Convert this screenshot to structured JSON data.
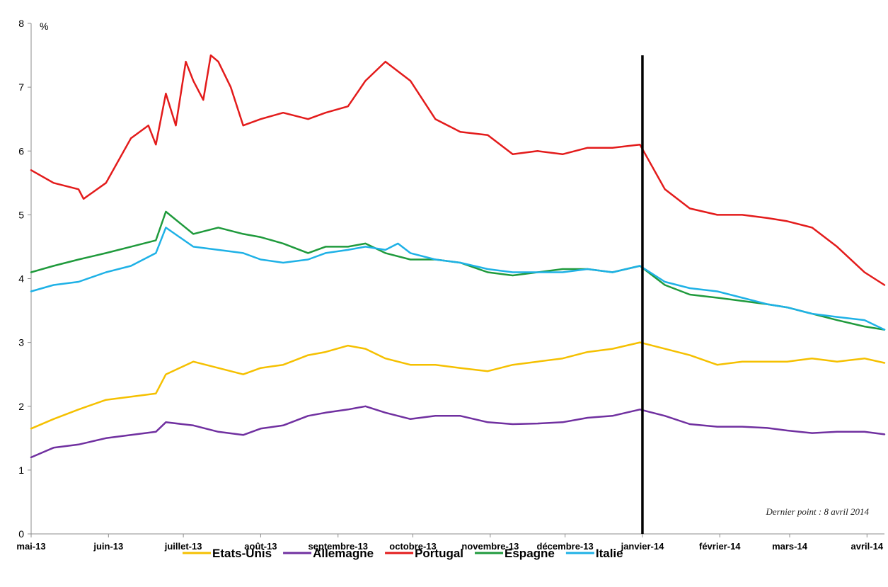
{
  "chart_data": {
    "type": "line",
    "y_unit_label": "%",
    "ylim": [
      0,
      8
    ],
    "y_ticks": [
      "0",
      "1",
      "2",
      "3",
      "4",
      "5",
      "6",
      "7",
      "8"
    ],
    "x_tick_labels": [
      "mai-13",
      "juin-13",
      "juillet-13",
      "août-13",
      "septembre-13",
      "octobre-13",
      "novembre-13",
      "décembre-13",
      "janvier-14",
      "février-14",
      "mars-14",
      "avril-14"
    ],
    "x_tick_dates": [
      "2013-05-01",
      "2013-06-01",
      "2013-07-01",
      "2013-08-01",
      "2013-09-01",
      "2013-10-01",
      "2013-11-01",
      "2013-12-01",
      "2014-01-01",
      "2014-02-01",
      "2014-03-01",
      "2014-04-01"
    ],
    "xlim": [
      "2013-05-01",
      "2014-04-08"
    ],
    "grid": false,
    "legend_position": "bottom",
    "vertical_marker_date": "2014-01-01",
    "annotation": "Dernier point : 8 avril 2014",
    "series": [
      {
        "name": "Etats-Unis",
        "color": "#f5c000",
        "points": [
          [
            "2013-05-01",
            1.65
          ],
          [
            "2013-05-10",
            1.8
          ],
          [
            "2013-05-20",
            1.95
          ],
          [
            "2013-05-31",
            2.1
          ],
          [
            "2013-06-10",
            2.15
          ],
          [
            "2013-06-20",
            2.2
          ],
          [
            "2013-06-24",
            2.5
          ],
          [
            "2013-07-05",
            2.7
          ],
          [
            "2013-07-15",
            2.6
          ],
          [
            "2013-07-25",
            2.5
          ],
          [
            "2013-08-01",
            2.6
          ],
          [
            "2013-08-10",
            2.65
          ],
          [
            "2013-08-20",
            2.8
          ],
          [
            "2013-08-27",
            2.85
          ],
          [
            "2013-09-05",
            2.95
          ],
          [
            "2013-09-12",
            2.9
          ],
          [
            "2013-09-20",
            2.75
          ],
          [
            "2013-09-30",
            2.65
          ],
          [
            "2013-10-10",
            2.65
          ],
          [
            "2013-10-20",
            2.6
          ],
          [
            "2013-10-31",
            2.55
          ],
          [
            "2013-11-10",
            2.65
          ],
          [
            "2013-11-20",
            2.7
          ],
          [
            "2013-11-30",
            2.75
          ],
          [
            "2013-12-10",
            2.85
          ],
          [
            "2013-12-20",
            2.9
          ],
          [
            "2013-12-31",
            3.0
          ],
          [
            "2014-01-10",
            2.9
          ],
          [
            "2014-01-20",
            2.8
          ],
          [
            "2014-01-31",
            2.65
          ],
          [
            "2014-02-10",
            2.7
          ],
          [
            "2014-02-20",
            2.7
          ],
          [
            "2014-02-28",
            2.7
          ],
          [
            "2014-03-10",
            2.75
          ],
          [
            "2014-03-20",
            2.7
          ],
          [
            "2014-03-31",
            2.75
          ],
          [
            "2014-04-08",
            2.68
          ]
        ]
      },
      {
        "name": "Allemagne",
        "color": "#7030a0",
        "points": [
          [
            "2013-05-01",
            1.2
          ],
          [
            "2013-05-10",
            1.35
          ],
          [
            "2013-05-20",
            1.4
          ],
          [
            "2013-05-31",
            1.5
          ],
          [
            "2013-06-10",
            1.55
          ],
          [
            "2013-06-20",
            1.6
          ],
          [
            "2013-06-24",
            1.75
          ],
          [
            "2013-07-05",
            1.7
          ],
          [
            "2013-07-15",
            1.6
          ],
          [
            "2013-07-25",
            1.55
          ],
          [
            "2013-08-01",
            1.65
          ],
          [
            "2013-08-10",
            1.7
          ],
          [
            "2013-08-20",
            1.85
          ],
          [
            "2013-08-27",
            1.9
          ],
          [
            "2013-09-05",
            1.95
          ],
          [
            "2013-09-12",
            2.0
          ],
          [
            "2013-09-20",
            1.9
          ],
          [
            "2013-09-30",
            1.8
          ],
          [
            "2013-10-10",
            1.85
          ],
          [
            "2013-10-20",
            1.85
          ],
          [
            "2013-10-31",
            1.75
          ],
          [
            "2013-11-10",
            1.72
          ],
          [
            "2013-11-20",
            1.73
          ],
          [
            "2013-11-30",
            1.75
          ],
          [
            "2013-12-10",
            1.82
          ],
          [
            "2013-12-20",
            1.85
          ],
          [
            "2013-12-31",
            1.95
          ],
          [
            "2014-01-10",
            1.85
          ],
          [
            "2014-01-20",
            1.72
          ],
          [
            "2014-01-31",
            1.68
          ],
          [
            "2014-02-10",
            1.68
          ],
          [
            "2014-02-20",
            1.66
          ],
          [
            "2014-02-28",
            1.62
          ],
          [
            "2014-03-10",
            1.58
          ],
          [
            "2014-03-20",
            1.6
          ],
          [
            "2014-03-31",
            1.6
          ],
          [
            "2014-04-08",
            1.56
          ]
        ]
      },
      {
        "name": "Portugal",
        "color": "#e31b1b",
        "points": [
          [
            "2013-05-01",
            5.7
          ],
          [
            "2013-05-10",
            5.5
          ],
          [
            "2013-05-20",
            5.4
          ],
          [
            "2013-05-22",
            5.25
          ],
          [
            "2013-05-31",
            5.5
          ],
          [
            "2013-06-10",
            6.2
          ],
          [
            "2013-06-17",
            6.4
          ],
          [
            "2013-06-20",
            6.1
          ],
          [
            "2013-06-24",
            6.9
          ],
          [
            "2013-06-28",
            6.4
          ],
          [
            "2013-07-02",
            7.4
          ],
          [
            "2013-07-05",
            7.1
          ],
          [
            "2013-07-09",
            6.8
          ],
          [
            "2013-07-12",
            7.5
          ],
          [
            "2013-07-15",
            7.4
          ],
          [
            "2013-07-20",
            7.0
          ],
          [
            "2013-07-25",
            6.4
          ],
          [
            "2013-08-01",
            6.5
          ],
          [
            "2013-08-10",
            6.6
          ],
          [
            "2013-08-20",
            6.5
          ],
          [
            "2013-08-27",
            6.6
          ],
          [
            "2013-09-05",
            6.7
          ],
          [
            "2013-09-12",
            7.1
          ],
          [
            "2013-09-20",
            7.4
          ],
          [
            "2013-09-30",
            7.1
          ],
          [
            "2013-10-10",
            6.5
          ],
          [
            "2013-10-20",
            6.3
          ],
          [
            "2013-10-31",
            6.25
          ],
          [
            "2013-11-10",
            5.95
          ],
          [
            "2013-11-20",
            6.0
          ],
          [
            "2013-11-30",
            5.95
          ],
          [
            "2013-12-10",
            6.05
          ],
          [
            "2013-12-20",
            6.05
          ],
          [
            "2013-12-31",
            6.1
          ],
          [
            "2014-01-10",
            5.4
          ],
          [
            "2014-01-20",
            5.1
          ],
          [
            "2014-01-31",
            5.0
          ],
          [
            "2014-02-10",
            5.0
          ],
          [
            "2014-02-20",
            4.95
          ],
          [
            "2014-02-28",
            4.9
          ],
          [
            "2014-03-10",
            4.8
          ],
          [
            "2014-03-20",
            4.5
          ],
          [
            "2014-03-31",
            4.1
          ],
          [
            "2014-04-08",
            3.9
          ]
        ]
      },
      {
        "name": "Espagne",
        "color": "#1f9a3c",
        "points": [
          [
            "2013-05-01",
            4.1
          ],
          [
            "2013-05-10",
            4.2
          ],
          [
            "2013-05-20",
            4.3
          ],
          [
            "2013-05-31",
            4.4
          ],
          [
            "2013-06-10",
            4.5
          ],
          [
            "2013-06-20",
            4.6
          ],
          [
            "2013-06-24",
            5.05
          ],
          [
            "2013-07-05",
            4.7
          ],
          [
            "2013-07-15",
            4.8
          ],
          [
            "2013-07-25",
            4.7
          ],
          [
            "2013-08-01",
            4.65
          ],
          [
            "2013-08-10",
            4.55
          ],
          [
            "2013-08-20",
            4.4
          ],
          [
            "2013-08-27",
            4.5
          ],
          [
            "2013-09-05",
            4.5
          ],
          [
            "2013-09-12",
            4.55
          ],
          [
            "2013-09-20",
            4.4
          ],
          [
            "2013-09-30",
            4.3
          ],
          [
            "2013-10-10",
            4.3
          ],
          [
            "2013-10-20",
            4.25
          ],
          [
            "2013-10-31",
            4.1
          ],
          [
            "2013-11-10",
            4.05
          ],
          [
            "2013-11-20",
            4.1
          ],
          [
            "2013-11-30",
            4.15
          ],
          [
            "2013-12-10",
            4.15
          ],
          [
            "2013-12-20",
            4.1
          ],
          [
            "2013-12-31",
            4.2
          ],
          [
            "2014-01-10",
            3.9
          ],
          [
            "2014-01-20",
            3.75
          ],
          [
            "2014-01-31",
            3.7
          ],
          [
            "2014-02-10",
            3.65
          ],
          [
            "2014-02-20",
            3.6
          ],
          [
            "2014-02-28",
            3.55
          ],
          [
            "2014-03-10",
            3.45
          ],
          [
            "2014-03-20",
            3.35
          ],
          [
            "2014-03-31",
            3.25
          ],
          [
            "2014-04-08",
            3.2
          ]
        ]
      },
      {
        "name": "Italie",
        "color": "#1eb1e6",
        "points": [
          [
            "2013-05-01",
            3.8
          ],
          [
            "2013-05-10",
            3.9
          ],
          [
            "2013-05-20",
            3.95
          ],
          [
            "2013-05-31",
            4.1
          ],
          [
            "2013-06-10",
            4.2
          ],
          [
            "2013-06-20",
            4.4
          ],
          [
            "2013-06-24",
            4.8
          ],
          [
            "2013-07-05",
            4.5
          ],
          [
            "2013-07-15",
            4.45
          ],
          [
            "2013-07-25",
            4.4
          ],
          [
            "2013-08-01",
            4.3
          ],
          [
            "2013-08-10",
            4.25
          ],
          [
            "2013-08-20",
            4.3
          ],
          [
            "2013-08-27",
            4.4
          ],
          [
            "2013-09-05",
            4.45
          ],
          [
            "2013-09-12",
            4.5
          ],
          [
            "2013-09-20",
            4.45
          ],
          [
            "2013-09-25",
            4.55
          ],
          [
            "2013-09-30",
            4.4
          ],
          [
            "2013-10-10",
            4.3
          ],
          [
            "2013-10-20",
            4.25
          ],
          [
            "2013-10-31",
            4.15
          ],
          [
            "2013-11-10",
            4.1
          ],
          [
            "2013-11-20",
            4.1
          ],
          [
            "2013-11-30",
            4.1
          ],
          [
            "2013-12-10",
            4.15
          ],
          [
            "2013-12-20",
            4.1
          ],
          [
            "2013-12-31",
            4.2
          ],
          [
            "2014-01-10",
            3.95
          ],
          [
            "2014-01-20",
            3.85
          ],
          [
            "2014-01-31",
            3.8
          ],
          [
            "2014-02-10",
            3.7
          ],
          [
            "2014-02-20",
            3.6
          ],
          [
            "2014-02-28",
            3.55
          ],
          [
            "2014-03-10",
            3.45
          ],
          [
            "2014-03-20",
            3.4
          ],
          [
            "2014-03-31",
            3.35
          ],
          [
            "2014-04-08",
            3.2
          ]
        ]
      }
    ]
  }
}
